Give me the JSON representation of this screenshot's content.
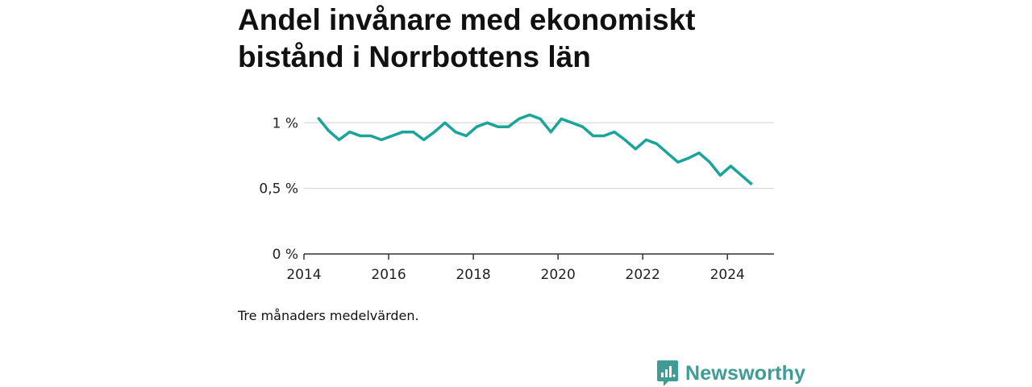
{
  "chart_data": {
    "type": "line",
    "title": "Andel invånare med ekonomiskt bistånd i Norrbottens län",
    "caption": "Tre månaders medelvärden.",
    "xlabel": "",
    "ylabel": "",
    "x_ticks": [
      "2014",
      "2016",
      "2018",
      "2020",
      "2022",
      "2024"
    ],
    "y_ticks": [
      "0 %",
      "0,5 %",
      "1 %"
    ],
    "y_tick_values": [
      0,
      0.5,
      1.0
    ],
    "xlim": [
      2014,
      2025.1
    ],
    "ylim": [
      0,
      1.1
    ],
    "grid": true,
    "line_color": "#1aa49a",
    "series": [
      {
        "x": [
          2014.33,
          2014.58,
          2014.83,
          2015.08,
          2015.33,
          2015.58,
          2015.83,
          2016.08,
          2016.33,
          2016.58,
          2016.83,
          2017.08,
          2017.33,
          2017.58,
          2017.83,
          2018.08,
          2018.33,
          2018.58,
          2018.83,
          2019.08,
          2019.33,
          2019.58,
          2019.83,
          2020.08,
          2020.33,
          2020.58,
          2020.83,
          2021.08,
          2021.33,
          2021.58,
          2021.83,
          2022.08,
          2022.33,
          2022.58,
          2022.83,
          2023.08,
          2023.33,
          2023.58,
          2023.83,
          2024.08,
          2024.33,
          2024.58
        ],
        "values": [
          1.04,
          0.94,
          0.87,
          0.93,
          0.9,
          0.9,
          0.87,
          0.9,
          0.93,
          0.93,
          0.87,
          0.93,
          1.0,
          0.93,
          0.9,
          0.97,
          1.0,
          0.97,
          0.97,
          1.03,
          1.06,
          1.03,
          0.93,
          1.03,
          1.0,
          0.97,
          0.9,
          0.9,
          0.93,
          0.87,
          0.8,
          0.87,
          0.84,
          0.77,
          0.7,
          0.73,
          0.77,
          0.7,
          0.6,
          0.67,
          0.6,
          0.53
        ]
      }
    ]
  },
  "brand": {
    "name": "Newsworthy",
    "color": "#3e9c95",
    "icon": "newsworthy-logo-icon"
  }
}
